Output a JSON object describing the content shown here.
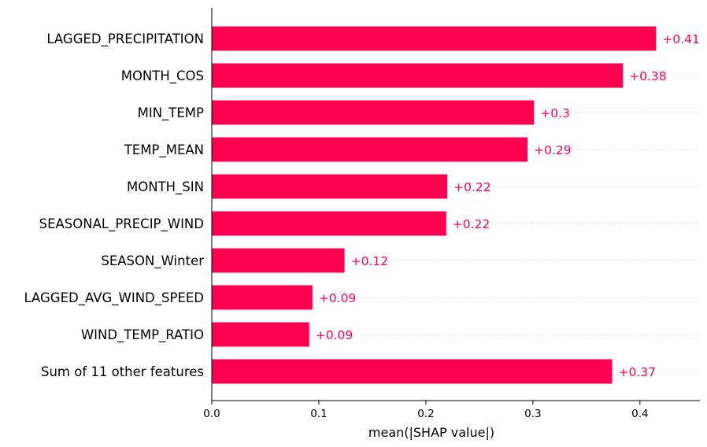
{
  "colors": {
    "bar": "#ff0051",
    "value_label": "#ff0051",
    "axis": "#000000",
    "guide": "#cccccc"
  },
  "chart_data": {
    "type": "bar",
    "orientation": "horizontal",
    "categories": [
      "LAGGED_PRECIPITATION",
      "MONTH_COS",
      "MIN_TEMP",
      "TEMP_MEAN",
      "MONTH_SIN",
      "SEASONAL_PRECIP_WIND",
      "SEASON_Winter",
      "LAGGED_AVG_WIND_SPEED",
      "WIND_TEMP_RATIO",
      "Sum of 11 other features"
    ],
    "values": [
      0.415,
      0.384,
      0.301,
      0.295,
      0.22,
      0.219,
      0.124,
      0.094,
      0.091,
      0.374
    ],
    "value_labels": [
      "+0.41",
      "+0.38",
      "+0.3",
      "+0.29",
      "+0.22",
      "+0.22",
      "+0.12",
      "+0.09",
      "+0.09",
      "+0.37"
    ],
    "xlabel": "mean(|SHAP value|)",
    "ylabel": "",
    "xlim": [
      0,
      0.456
    ],
    "xticks": [
      0,
      0.1,
      0.2,
      0.3,
      0.4
    ],
    "xtick_labels": [
      "0.0",
      "0.1",
      "0.2",
      "0.3",
      "0.4"
    ],
    "grid": false,
    "dotted_guides": true
  }
}
